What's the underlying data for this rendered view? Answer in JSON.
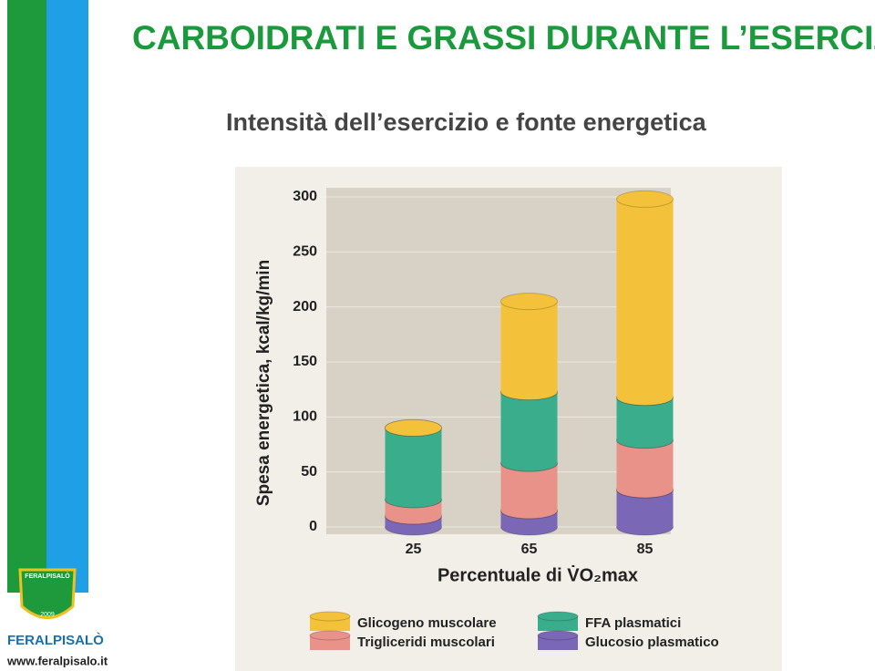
{
  "slide": {
    "title": "CARBOIDRATI E GRASSI DURANTE L’ESERCIZIO",
    "subtitle": "Intensità dell’esercizio e fonte energetica",
    "logo_name": "FERALPISALÒ",
    "logo_badge": "FERALPISALÒ",
    "logo_year": "2009",
    "website": "www.feralpisalo.it"
  },
  "chart_data": {
    "type": "stacked-bar",
    "x_label": "Percentuale di V̇O₂max",
    "y_label": "Spesa energetica, kcal/kg/min",
    "categories": [
      "25",
      "65",
      "85"
    ],
    "series": [
      {
        "name": "Glicogeno muscolare",
        "color": "#f4c23a",
        "values": [
          0,
          82,
          180
        ]
      },
      {
        "name": "FFA plasmatici",
        "color": "#3aae8c",
        "values": [
          65,
          65,
          39
        ]
      },
      {
        "name": "Trigliceridi muscolari",
        "color": "#e8928a",
        "values": [
          15,
          43,
          45
        ]
      },
      {
        "name": "Glucosio plasmatico",
        "color": "#7a68b6",
        "values": [
          10,
          15,
          34
        ]
      }
    ],
    "ylim": [
      0,
      300
    ],
    "yticks": [
      0,
      50,
      100,
      150,
      200,
      250,
      300
    ],
    "grid": true
  }
}
